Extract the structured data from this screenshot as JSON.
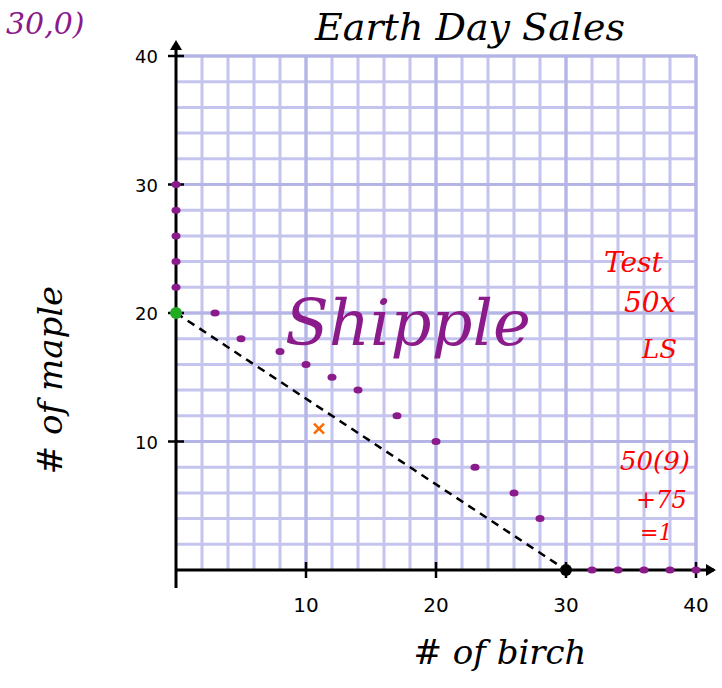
{
  "chart_data": {
    "type": "scatter",
    "title": "Earth Day Sales",
    "x_label": "# of birch",
    "y_label": "# of maple",
    "xlim": [
      0,
      40
    ],
    "ylim": [
      0,
      40
    ],
    "xticks": [
      10,
      20,
      30,
      40
    ],
    "yticks": [
      10,
      20,
      30,
      40
    ],
    "grid": true,
    "series": [
      {
        "type": "line",
        "line_style": "dashed",
        "color": "#000000",
        "x": [
          0,
          30
        ],
        "values": [
          20,
          0
        ]
      },
      {
        "type": "scatter",
        "marker": "circle",
        "color": "#8b1a8b",
        "x": [
          0,
          0,
          0,
          0,
          0,
          3,
          5,
          8,
          10,
          12,
          14,
          17,
          20,
          23,
          26,
          28,
          32,
          34,
          36,
          38,
          40
        ],
        "values": [
          22,
          24,
          26,
          28,
          30,
          20,
          18,
          17,
          16,
          15,
          14,
          12,
          10,
          8,
          6,
          4,
          0,
          0,
          0,
          0,
          0
        ]
      },
      {
        "type": "scatter",
        "marker": "circle",
        "colors": [
          "#22aa22",
          "#000000"
        ],
        "x": [
          0,
          30
        ],
        "values": [
          20,
          0
        ]
      },
      {
        "type": "scatter",
        "marker": "x",
        "color": "#ff6a00",
        "x": [
          11
        ],
        "values": [
          11
        ]
      }
    ],
    "annotations": [
      {
        "text": "30,0)",
        "color": "#8b1a8b"
      },
      {
        "text": "Shipple",
        "color": "#8b1a8b"
      },
      {
        "text": "Test",
        "color": "#ff0000"
      },
      {
        "text": "50x",
        "color": "#ff0000"
      },
      {
        "text": "LS",
        "color": "#ff0000"
      },
      {
        "text": "50(9)",
        "color": "#ff0000"
      },
      {
        "text": "+75",
        "color": "#ff0000"
      },
      {
        "text": "=1",
        "color": "#ff0000"
      }
    ]
  }
}
